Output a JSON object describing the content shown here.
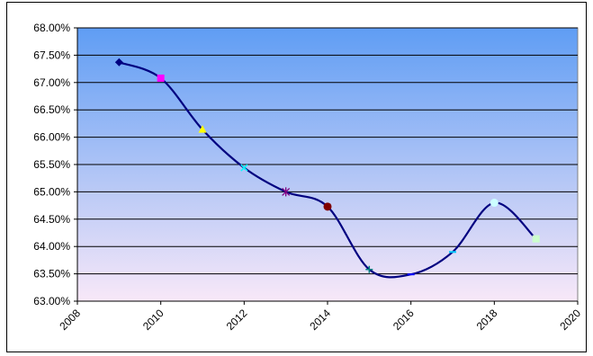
{
  "chart_data": {
    "type": "scatter",
    "title": "",
    "xlabel": "",
    "ylabel": "",
    "xlim": [
      2008,
      2020
    ],
    "ylim": [
      63.0,
      68.0
    ],
    "x_ticks": [
      2008,
      2010,
      2012,
      2014,
      2016,
      2018,
      2020
    ],
    "x_tick_labels": [
      "2008",
      "2010",
      "2012",
      "2014",
      "2016",
      "2018",
      "2020"
    ],
    "y_ticks": [
      63.0,
      63.5,
      64.0,
      64.5,
      65.0,
      65.5,
      66.0,
      66.5,
      67.0,
      67.5,
      68.0
    ],
    "y_tick_labels": [
      "63.00%",
      "63.50%",
      "64.00%",
      "64.50%",
      "65.00%",
      "65.50%",
      "66.00%",
      "66.50%",
      "67.00%",
      "67.50%",
      "68.00%"
    ],
    "grid": "horizontal",
    "legend": "none",
    "line_style": "smoothed",
    "series": [
      {
        "line_color": "#000080",
        "points": [
          {
            "x": 2009,
            "y": 67.37,
            "marker": "diamond",
            "color": "#000080"
          },
          {
            "x": 2010,
            "y": 67.08,
            "marker": "square",
            "color": "#ff00ff"
          },
          {
            "x": 2011,
            "y": 66.14,
            "marker": "triangle",
            "color": "#ffff00"
          },
          {
            "x": 2012,
            "y": 65.44,
            "marker": "x",
            "color": "#00ffff"
          },
          {
            "x": 2013,
            "y": 65.0,
            "marker": "star",
            "color": "#800080"
          },
          {
            "x": 2014,
            "y": 64.73,
            "marker": "circle",
            "color": "#800000"
          },
          {
            "x": 2015,
            "y": 63.58,
            "marker": "plus",
            "color": "#008080"
          },
          {
            "x": 2016,
            "y": 63.49,
            "marker": "dash",
            "color": "#0000ff"
          },
          {
            "x": 2017,
            "y": 63.9,
            "marker": "dash",
            "color": "#00ccff"
          },
          {
            "x": 2018,
            "y": 64.8,
            "marker": "circle",
            "color": "#ccffff"
          },
          {
            "x": 2019,
            "y": 64.14,
            "marker": "square",
            "color": "#ccffcc"
          }
        ]
      }
    ],
    "colors": {
      "plot_top": "#5f9df4",
      "plot_bottom": "#f8e8f8",
      "gridline": "#000000",
      "plot_border": "#808080"
    }
  }
}
